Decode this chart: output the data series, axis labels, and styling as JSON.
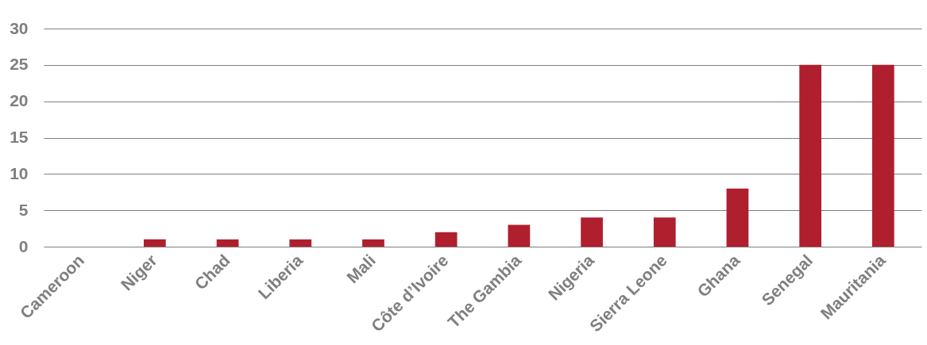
{
  "chart_data": {
    "type": "bar",
    "categories": [
      "Cameroon",
      "Niger",
      "Chad",
      "Liberia",
      "Mali",
      "Côte d’Ivoire",
      "The Gambia",
      "Nigeria",
      "Sierra Leone",
      "Ghana",
      "Senegal",
      "Mauritania"
    ],
    "values": [
      0,
      1,
      1,
      1,
      1,
      2,
      3,
      4,
      4,
      8,
      25,
      25
    ],
    "color": "#b01f2e",
    "ylim": [
      0,
      30
    ],
    "yticks": [
      0,
      5,
      10,
      15,
      20,
      25,
      30
    ],
    "grid": "y"
  }
}
